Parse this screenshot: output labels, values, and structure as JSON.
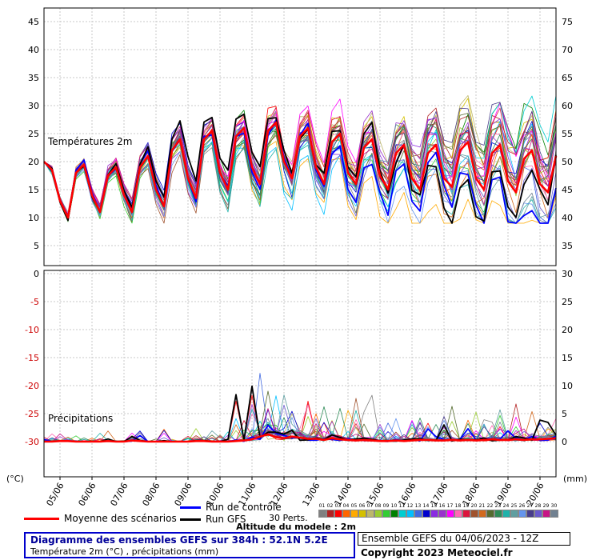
{
  "axes": {
    "left_top_labels": [
      "45",
      "40",
      "35",
      "30",
      "25",
      "20",
      "15",
      "10",
      "5"
    ],
    "left_bottom_labels": [
      "0",
      "-5",
      "-10",
      "-15",
      "-20",
      "-25",
      "-30"
    ],
    "right_top_labels": [
      "75",
      "70",
      "65",
      "60",
      "55",
      "50",
      "45",
      "40",
      "35"
    ],
    "right_bottom_labels": [
      "30",
      "25",
      "20",
      "15",
      "10",
      "5",
      "0"
    ],
    "left_unit": "(°C)",
    "right_unit": "(mm)",
    "x_labels": [
      "05/06",
      "06/06",
      "07/06",
      "08/06",
      "09/06",
      "10/06",
      "11/06",
      "12/06",
      "13/06",
      "14/06",
      "15/06",
      "16/06",
      "17/06",
      "18/06",
      "19/06",
      "20/06"
    ]
  },
  "panel_labels": {
    "temp": "Températures 2m",
    "precip": "Précipitations"
  },
  "legend": {
    "mean": "Moyenne des scénarios",
    "control": "Run de contrôle",
    "gfs": "Run GFS",
    "perts": "30 Perts.",
    "mean_color": "#ff0000",
    "control_color": "#0000ff",
    "gfs_color": "#000000",
    "pert_numbers": [
      "01",
      "02",
      "03",
      "04",
      "05",
      "06",
      "07",
      "08",
      "09",
      "10",
      "11",
      "12",
      "13",
      "14",
      "15",
      "16",
      "17",
      "18",
      "19",
      "20",
      "21",
      "22",
      "23",
      "24",
      "25",
      "26",
      "27",
      "28",
      "29",
      "30"
    ],
    "pert_colors": [
      "#808080",
      "#b22222",
      "#ff0000",
      "#ff6600",
      "#ffaa00",
      "#d4c000",
      "#bdb76b",
      "#9acd32",
      "#32cd32",
      "#008000",
      "#00ced1",
      "#00bfff",
      "#4169e1",
      "#0000cd",
      "#8a2be2",
      "#9932cc",
      "#ff00ff",
      "#ff69b4",
      "#dc143c",
      "#a0522d",
      "#d2691e",
      "#556b2f",
      "#2e8b57",
      "#20b2aa",
      "#5f9ea0",
      "#6495ed",
      "#483d8b",
      "#6a5acd",
      "#c71585",
      "#708090"
    ]
  },
  "altitude_note": "Altitude du modele : 2m",
  "footer": {
    "title": "Diagramme des ensembles GEFS sur 384h : 52.1N 5.2E",
    "subtitle": "Température 2m (°C) , précipitations (mm)",
    "run_info": "Ensemble GEFS du 04/06/2023 - 12Z",
    "copyright": "Copyright 2023 Meteociel.fr"
  },
  "chart_data": {
    "type": "line",
    "title": "Diagramme des ensembles GEFS sur 384h : 52.1N 5.2E",
    "run": "04/06/2023 12Z",
    "hours_total": 384,
    "step_hours": 6,
    "members": 30,
    "temp_axis_range_c": [
      -30,
      45
    ],
    "precip_axis_range_mm": [
      0,
      75
    ],
    "grid": true,
    "legend_position": "bottom",
    "temp_mean": [
      20,
      18.5,
      13,
      10,
      18,
      19.5,
      14,
      11,
      17.5,
      19,
      14,
      11,
      19,
      21,
      15,
      12,
      22,
      24,
      17,
      13.5,
      24,
      25.5,
      18,
      15,
      24.5,
      26,
      19,
      16,
      25.5,
      27,
      20,
      17,
      24.5,
      26,
      19,
      16,
      23.5,
      25,
      18,
      16,
      22.5,
      24,
      17.5,
      15,
      21.5,
      23,
      17,
      15,
      21.5,
      23,
      17,
      15.5,
      22,
      23.5,
      17,
      15,
      21.5,
      23,
      16.5,
      14.5,
      20.5,
      22,
      16,
      14.5,
      21
    ],
    "precip_mean": [
      0,
      0,
      0.1,
      0.1,
      0,
      0,
      0,
      0,
      0.1,
      0,
      0,
      0.2,
      0.1,
      0,
      0,
      0,
      0,
      0,
      0,
      0.1,
      0.1,
      0,
      0,
      0,
      0.1,
      0.2,
      0.4,
      0.9,
      1.3,
      0.8,
      0.6,
      0.9,
      0.7,
      0.5,
      0.5,
      0.3,
      0.6,
      0.4,
      0.3,
      0.2,
      0.3,
      0.2,
      0.1,
      0.1,
      0.2,
      0.1,
      0.2,
      0.3,
      0.3,
      0.2,
      0.2,
      0.3,
      0.2,
      0.3,
      0.2,
      0.3,
      0.4,
      0.3,
      0.3,
      0.4,
      0.3,
      0.4,
      0.4,
      0.5,
      0.6
    ]
  }
}
